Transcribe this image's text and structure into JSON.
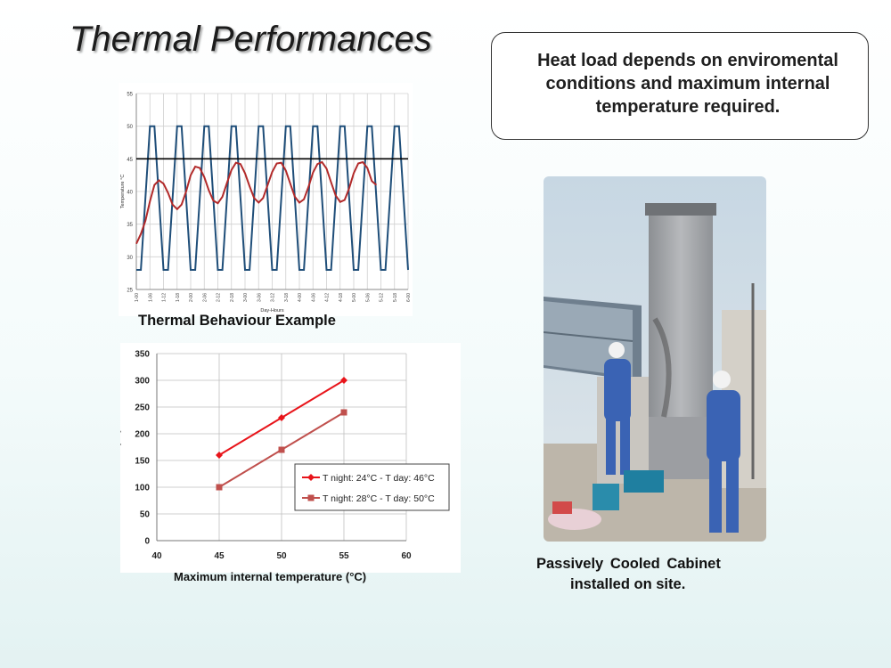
{
  "slide": {
    "title": "Thermal Performances",
    "callout_text": "Heat load depends on enviromental conditions and maximum internal temperature required.",
    "thermal_caption": "Thermal Behaviour Example",
    "photo_caption_line1": "Passively  Cooled    Cabinet",
    "photo_caption_line2": "installed on site."
  },
  "photo": {
    "description_icon": "cabinet-photo",
    "colors": {
      "sky": "#c9dbe6",
      "cabinet": "#a7a9ab",
      "workers": "#3a63b4",
      "ground": "#b9b3a8"
    }
  },
  "chart_data": [
    {
      "type": "line",
      "title": "",
      "xlabel": "Day-Hours",
      "ylabel": "Temperature °C",
      "ylim": [
        25,
        55
      ],
      "yticks": [
        25,
        30,
        35,
        40,
        45,
        50,
        55
      ],
      "xlim": [
        1.0,
        6.0
      ],
      "xtick_labels": [
        "1-00",
        "1-06",
        "1-12",
        "1-18",
        "2-00",
        "2-06",
        "2-12",
        "2-18",
        "3-00",
        "3-06",
        "3-12",
        "3-18",
        "4-00",
        "4-06",
        "4-12",
        "4-18",
        "5-00",
        "5-06",
        "5-12",
        "5-18",
        "6-00"
      ],
      "grid": true,
      "legend": "none",
      "series": [
        {
          "color": "#1f4e79",
          "points": [
            [
              1.0,
              28
            ],
            [
              1.083,
              28
            ],
            [
              1.25,
              50
            ],
            [
              1.333,
              50
            ],
            [
              1.5,
              28
            ],
            [
              1.583,
              28
            ],
            [
              1.75,
              50
            ],
            [
              1.833,
              50
            ],
            [
              2.0,
              28
            ],
            [
              2.083,
              28
            ],
            [
              2.25,
              50
            ],
            [
              2.333,
              50
            ],
            [
              2.5,
              28
            ],
            [
              2.583,
              28
            ],
            [
              2.75,
              50
            ],
            [
              2.833,
              50
            ],
            [
              3.0,
              28
            ],
            [
              3.083,
              28
            ],
            [
              3.25,
              50
            ],
            [
              3.333,
              50
            ],
            [
              3.5,
              28
            ],
            [
              3.583,
              28
            ],
            [
              3.75,
              50
            ],
            [
              3.833,
              50
            ],
            [
              4.0,
              28
            ],
            [
              4.083,
              28
            ],
            [
              4.25,
              50
            ],
            [
              4.333,
              50
            ],
            [
              4.5,
              28
            ],
            [
              4.583,
              28
            ],
            [
              4.75,
              50
            ],
            [
              4.833,
              50
            ],
            [
              5.0,
              28
            ],
            [
              5.083,
              28
            ],
            [
              5.25,
              50
            ],
            [
              5.333,
              50
            ],
            [
              5.5,
              28
            ],
            [
              5.583,
              28
            ],
            [
              5.75,
              50
            ],
            [
              5.833,
              50
            ],
            [
              6.0,
              28
            ]
          ]
        },
        {
          "color": "#b22a2a",
          "points": [
            [
              1.0,
              32.0
            ],
            [
              1.083,
              33.5
            ],
            [
              1.167,
              35.5
            ],
            [
              1.25,
              38.5
            ],
            [
              1.333,
              41.0
            ],
            [
              1.417,
              41.7
            ],
            [
              1.5,
              41.2
            ],
            [
              1.583,
              39.8
            ],
            [
              1.667,
              38.0
            ],
            [
              1.75,
              37.3
            ],
            [
              1.833,
              38.0
            ],
            [
              1.917,
              40.0
            ],
            [
              2.0,
              42.5
            ],
            [
              2.083,
              43.8
            ],
            [
              2.167,
              43.6
            ],
            [
              2.25,
              42.2
            ],
            [
              2.333,
              40.2
            ],
            [
              2.417,
              38.6
            ],
            [
              2.5,
              38.2
            ],
            [
              2.583,
              39.2
            ],
            [
              2.667,
              41.3
            ],
            [
              2.75,
              43.3
            ],
            [
              2.833,
              44.4
            ],
            [
              2.917,
              44.2
            ],
            [
              3.0,
              42.8
            ],
            [
              3.083,
              40.8
            ],
            [
              3.167,
              39.0
            ],
            [
              3.25,
              38.3
            ],
            [
              3.333,
              39.0
            ],
            [
              3.417,
              41.0
            ],
            [
              3.5,
              43.0
            ],
            [
              3.583,
              44.3
            ],
            [
              3.667,
              44.4
            ],
            [
              3.75,
              43.2
            ],
            [
              3.833,
              41.2
            ],
            [
              3.917,
              39.2
            ],
            [
              4.0,
              38.3
            ],
            [
              4.083,
              38.8
            ],
            [
              4.167,
              40.7
            ],
            [
              4.25,
              42.9
            ],
            [
              4.333,
              44.2
            ],
            [
              4.417,
              44.5
            ],
            [
              4.5,
              43.5
            ],
            [
              4.583,
              41.4
            ],
            [
              4.667,
              39.4
            ],
            [
              4.75,
              38.4
            ],
            [
              4.833,
              38.7
            ],
            [
              4.917,
              40.5
            ],
            [
              5.0,
              42.8
            ],
            [
              5.083,
              44.3
            ],
            [
              5.167,
              44.5
            ],
            [
              5.25,
              43.6
            ],
            [
              5.333,
              41.6
            ],
            [
              5.417,
              41.0
            ]
          ]
        },
        {
          "color": "#000000",
          "points": [
            [
              1.0,
              45
            ],
            [
              6.0,
              45
            ]
          ]
        }
      ]
    },
    {
      "type": "line",
      "title": "",
      "xlabel": "Maximum internal temperature (°C)",
      "ylabel": "Heat Load (W)",
      "xlim": [
        40,
        60
      ],
      "xticks": [
        40,
        45,
        50,
        55,
        60
      ],
      "ylim": [
        0,
        350
      ],
      "yticks": [
        0,
        50,
        100,
        150,
        200,
        250,
        300,
        350
      ],
      "grid": true,
      "legend": "center-right",
      "series": [
        {
          "name": "T night: 24°C - T day: 46°C",
          "color": "#e8141a",
          "marker": "diamond",
          "x": [
            45,
            50,
            55
          ],
          "values": [
            160,
            230,
            300
          ]
        },
        {
          "name": "T night: 28°C - T day: 50°C",
          "color": "#c0504d",
          "marker": "square",
          "x": [
            45,
            50,
            55
          ],
          "values": [
            100,
            170,
            240
          ]
        }
      ]
    }
  ]
}
